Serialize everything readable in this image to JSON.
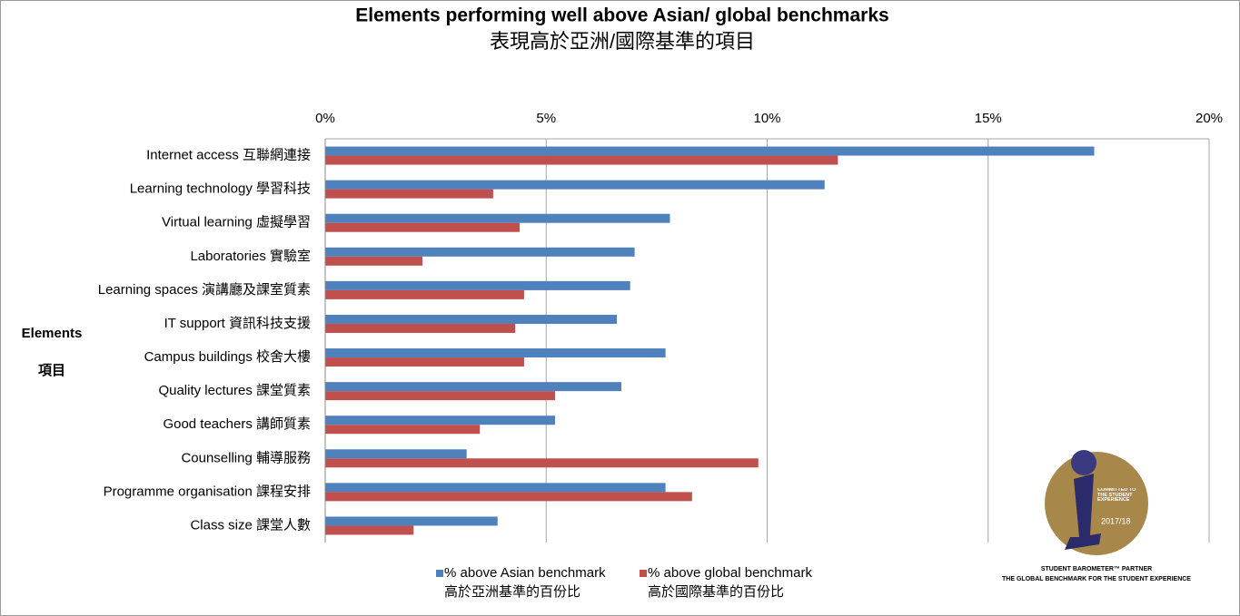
{
  "chart_data": {
    "type": "bar",
    "orientation": "horizontal",
    "title": "Elements performing well above Asian/ global benchmarks",
    "subtitle": "表現高於亞洲/國際基準的項目",
    "y_label": "Elements",
    "y_label_zh": "項目",
    "categories": [
      "Internet access 互聯網連接",
      "Learning technology 學習科技",
      "Virtual learning 虛擬學習",
      "Laboratories 實驗室",
      "Learning spaces 演講廳及課室質素",
      "IT support 資訊科技支援",
      "Campus buildings 校舍大樓",
      "Quality lectures 課堂質素",
      "Good teachers 講師質素",
      "Counselling 輔導服務",
      "Programme organisation 課程安排",
      "Class size 課堂人數"
    ],
    "series": [
      {
        "name": "% above Asian benchmark",
        "name_zh": "高於亞洲基準的百份比",
        "color": "#4f81bd",
        "values": [
          17.4,
          11.3,
          7.8,
          7.0,
          6.9,
          6.6,
          7.7,
          6.7,
          5.2,
          3.2,
          7.7,
          3.9
        ]
      },
      {
        "name": "% above global benchmark",
        "name_zh": "高於國際基準的百份比",
        "color": "#c0504d",
        "values": [
          11.6,
          3.8,
          4.4,
          2.2,
          4.5,
          4.3,
          4.5,
          5.2,
          3.5,
          9.8,
          8.3,
          2.0
        ]
      }
    ],
    "xlim": [
      0,
      20
    ],
    "xticks": [
      {
        "value": 0,
        "label": "0%"
      },
      {
        "value": 5,
        "label": "5%"
      },
      {
        "value": 10,
        "label": "10%"
      },
      {
        "value": 15,
        "label": "15%"
      },
      {
        "value": 20,
        "label": "20%"
      }
    ],
    "grid": true
  },
  "logo": {
    "badge": "COMMITTED TO THE STUDENT EXPERIENCE",
    "year": "2017/18",
    "line1": "STUDENT BAROMETER™ PARTNER",
    "line2": "THE GLOBAL BENCHMARK FOR THE STUDENT EXPERIENCE"
  }
}
